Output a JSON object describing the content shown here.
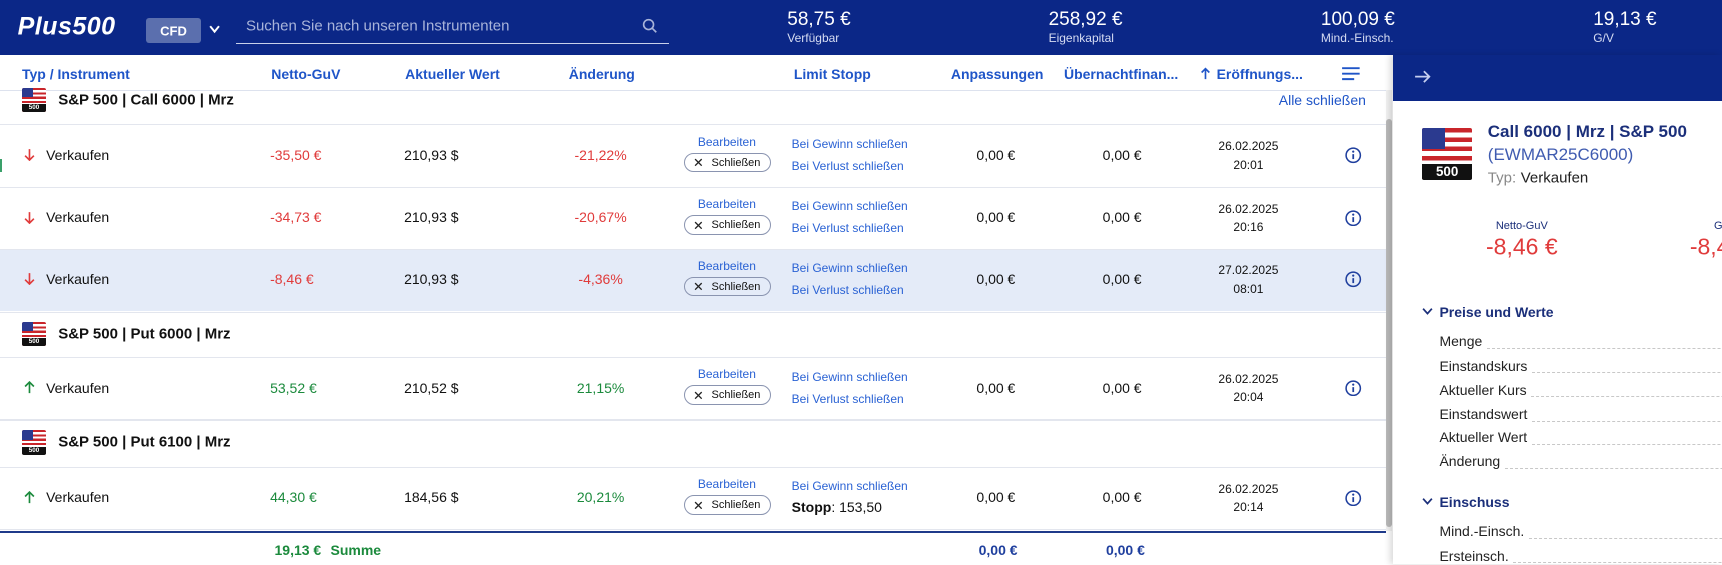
{
  "header": {
    "logo": "Plus500",
    "mode": "CFD",
    "search_placeholder": "Suchen Sie nach unseren Instrumenten",
    "stats": [
      {
        "value": "58,75 €",
        "label": "Verfügbar"
      },
      {
        "value": "258,92 €",
        "label": "Eigenkapital"
      },
      {
        "value": "100,09 €",
        "label": "Mind.-Einsch."
      },
      {
        "value": "19,13 €",
        "label": "G/V"
      }
    ]
  },
  "table": {
    "columns": [
      "Typ / Instrument",
      "Netto-GuV",
      "Aktueller Wert",
      "Änderung",
      "Limit Stopp",
      "Anpassungen",
      "Übernachtfinan...",
      "Eröffnungs..."
    ],
    "groups": [
      {
        "title": "S&P 500 | Call 6000 | Mrz",
        "flag": "500",
        "action": "Alle schließen",
        "rows": [
          {
            "side": "Verkaufen",
            "direction": "down",
            "netto": "-35,50 €",
            "wert": "210,93 $",
            "change": "-21,22%",
            "edit": "Bearbeiten",
            "close": "Schließen",
            "limit1": "Bei Gewinn schließen",
            "limit2": "Bei Verlust schließen",
            "adjust": "0,00 €",
            "overnight": "0,00 €",
            "date": "26.02.2025",
            "time": "20:01"
          },
          {
            "side": "Verkaufen",
            "direction": "down",
            "netto": "-34,73 €",
            "wert": "210,93 $",
            "change": "-20,67%",
            "edit": "Bearbeiten",
            "close": "Schließen",
            "limit1": "Bei Gewinn schließen",
            "limit2": "Bei Verlust schließen",
            "adjust": "0,00 €",
            "overnight": "0,00 €",
            "date": "26.02.2025",
            "time": "20:16"
          },
          {
            "side": "Verkaufen",
            "direction": "down",
            "selected": true,
            "netto": "-8,46 €",
            "wert": "210,93 $",
            "change": "-4,36%",
            "edit": "Bearbeiten",
            "close": "Schließen",
            "limit1": "Bei Gewinn schließen",
            "limit2": "Bei Verlust schließen",
            "adjust": "0,00 €",
            "overnight": "0,00 €",
            "date": "27.02.2025",
            "time": "08:01"
          }
        ]
      },
      {
        "title": "S&P 500 | Put 6000 | Mrz",
        "flag": "500",
        "rows": [
          {
            "side": "Verkaufen",
            "direction": "up",
            "netto": "53,52 €",
            "wert": "210,52 $",
            "change": "21,15%",
            "edit": "Bearbeiten",
            "close": "Schließen",
            "limit1": "Bei Gewinn schließen",
            "limit2": "Bei Verlust schließen",
            "adjust": "0,00 €",
            "overnight": "0,00 €",
            "date": "26.02.2025",
            "time": "20:04"
          }
        ]
      },
      {
        "title": "S&P 500 | Put 6100 | Mrz",
        "flag": "500",
        "rows": [
          {
            "side": "Verkaufen",
            "direction": "up",
            "netto": "44,30 €",
            "wert": "184,56 $",
            "change": "20,21%",
            "edit": "Bearbeiten",
            "close": "Schließen",
            "limit1": "Bei Gewinn schließen",
            "stop_label": "Stopp",
            "stop_value": ": 153,50",
            "adjust": "0,00 €",
            "overnight": "0,00 €",
            "date": "26.02.2025",
            "time": "20:14"
          }
        ]
      }
    ],
    "footer": {
      "netto": "19,13 €",
      "label": "Summe",
      "adjust": "0,00 €",
      "overnight": "0,00 €"
    }
  },
  "panel": {
    "title": "Call 6000 | Mrz | S&P 500",
    "code": "(EWMAR25C6000)",
    "flag": "500",
    "type_label": "Typ:",
    "type_value": "Verkaufen",
    "metrics": [
      {
        "label": "Netto-GuV",
        "value": "-8,46 €"
      },
      {
        "label": "G",
        "value": "-8,4"
      }
    ],
    "sections": [
      {
        "title": "Preise und Werte",
        "items": [
          "Menge",
          "Einstandskurs",
          "Aktueller Kurs",
          "Einstandswert",
          "Aktueller Wert",
          "Änderung"
        ]
      },
      {
        "title": "Einschuss",
        "items": [
          "Mind.-Einsch.",
          "Ersteinsch."
        ]
      }
    ]
  }
}
